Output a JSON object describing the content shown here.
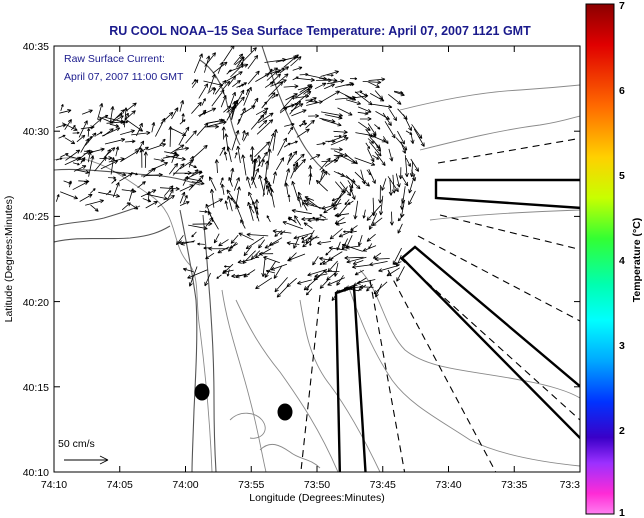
{
  "title": "RU COOL  NOAA–15  Sea Surface Temperature:  April 07, 2007 1121 GMT",
  "annotation": {
    "line1": "Raw Surface Current:",
    "line2": "April 07, 2007 11:00 GMT"
  },
  "scale_label": "50 cm/s",
  "axes": {
    "xlabel": "Longitude (Degrees:Minutes)",
    "ylabel": "Latitude (Degrees:Minutes)",
    "x_ticks": [
      "74:10",
      "74:05",
      "74:00",
      "73:55",
      "73:50",
      "73:45",
      "73:40",
      "73:35",
      "73:3"
    ],
    "y_ticks": [
      "40:35",
      "40:30",
      "40:25",
      "40:20",
      "40:15",
      "40:10"
    ]
  },
  "colorbar": {
    "label": "Temperature (°C)",
    "ticks": [
      "7",
      "6",
      "5",
      "4",
      "3",
      "2",
      "1"
    ]
  },
  "colors": {
    "title": "#1a1a8c",
    "frame": "#000000",
    "contour": "#8a8a8a",
    "coast": "#555555"
  },
  "map_layers": {
    "current_vectors": "raw surface current arrows over New York Bight apex",
    "markers": [
      "black-dot",
      "black-dot"
    ],
    "lanes": [
      "shipping-lane-east",
      "shipping-lane-southeast",
      "shipping-lane-south"
    ]
  }
}
